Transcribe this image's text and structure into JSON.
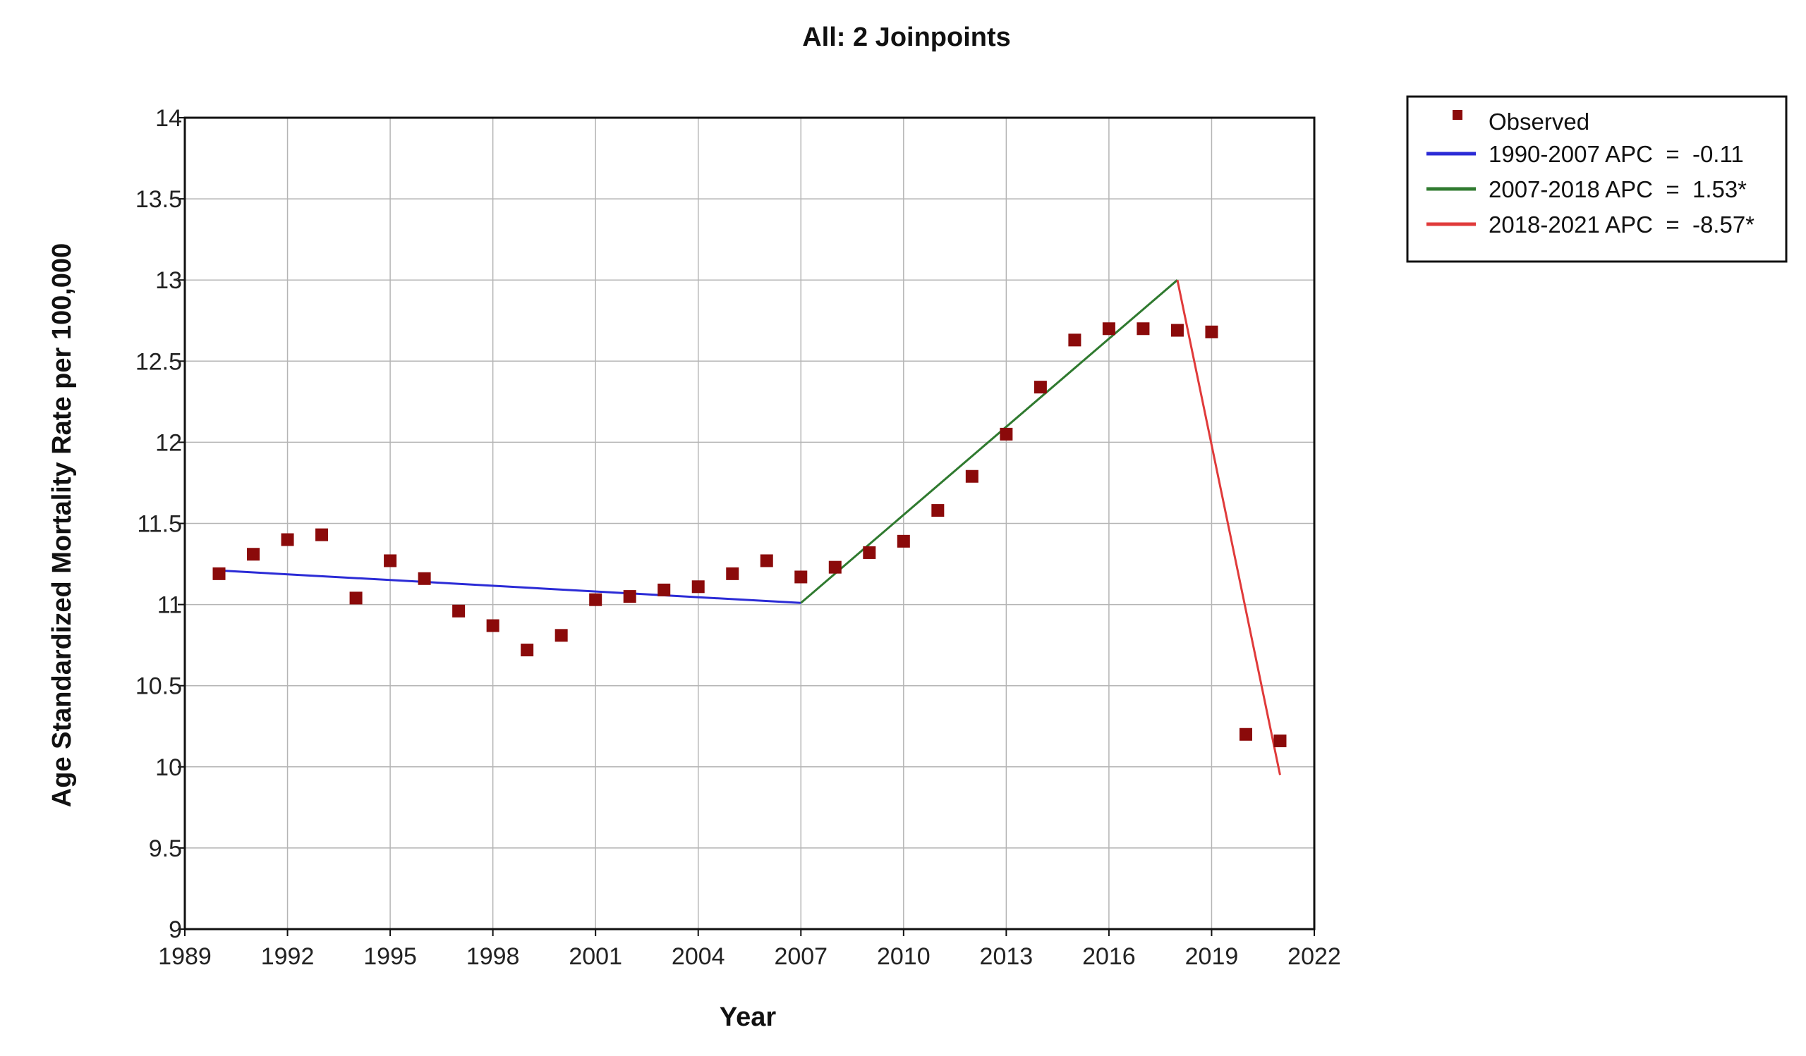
{
  "chart_data": {
    "type": "line",
    "title": "All: 2 Joinpoints",
    "xlabel": "Year",
    "ylabel": "Age Standardized Mortality Rate per 100,000",
    "xlim": [
      1989,
      2022
    ],
    "ylim": [
      9,
      14
    ],
    "x_ticks": [
      "1989",
      "1992",
      "1995",
      "1998",
      "2001",
      "2004",
      "2007",
      "2010",
      "2013",
      "2016",
      "2019",
      "2022"
    ],
    "y_ticks": [
      "9",
      "9.5",
      "10",
      "10.5",
      "11",
      "11.5",
      "12",
      "12.5",
      "13",
      "13.5",
      "14"
    ],
    "grid": true,
    "legend_position": "top-right, outside plot",
    "observed": {
      "name": "Observed",
      "color": "#8b0a0a",
      "marker": "square",
      "x": [
        1990,
        1991,
        1992,
        1993,
        1994,
        1995,
        1996,
        1997,
        1998,
        1999,
        2000,
        2001,
        2002,
        2003,
        2004,
        2005,
        2006,
        2007,
        2008,
        2009,
        2010,
        2011,
        2012,
        2013,
        2014,
        2015,
        2016,
        2017,
        2018,
        2019,
        2020,
        2021
      ],
      "y": [
        11.19,
        11.31,
        11.4,
        11.43,
        11.04,
        11.27,
        11.16,
        10.96,
        10.87,
        10.72,
        10.81,
        11.03,
        11.05,
        11.09,
        11.11,
        11.19,
        11.27,
        11.17,
        11.23,
        11.32,
        11.39,
        11.58,
        11.79,
        12.05,
        12.34,
        12.63,
        12.7,
        12.7,
        12.69,
        12.68,
        10.2,
        10.16
      ]
    },
    "segments": [
      {
        "name": "1990-2007 APC  =  -0.11",
        "color": "#2b2bd6",
        "x": [
          1990,
          2007
        ],
        "y": [
          11.21,
          11.01
        ]
      },
      {
        "name": "2007-2018 APC  =  1.53*",
        "color": "#2f7a2f",
        "x": [
          2007,
          2018
        ],
        "y": [
          11.01,
          13.0
        ]
      },
      {
        "name": "2018-2021 APC  =  -8.57*",
        "color": "#e03a3a",
        "x": [
          2018,
          2021
        ],
        "y": [
          13.0,
          9.95
        ]
      }
    ]
  }
}
